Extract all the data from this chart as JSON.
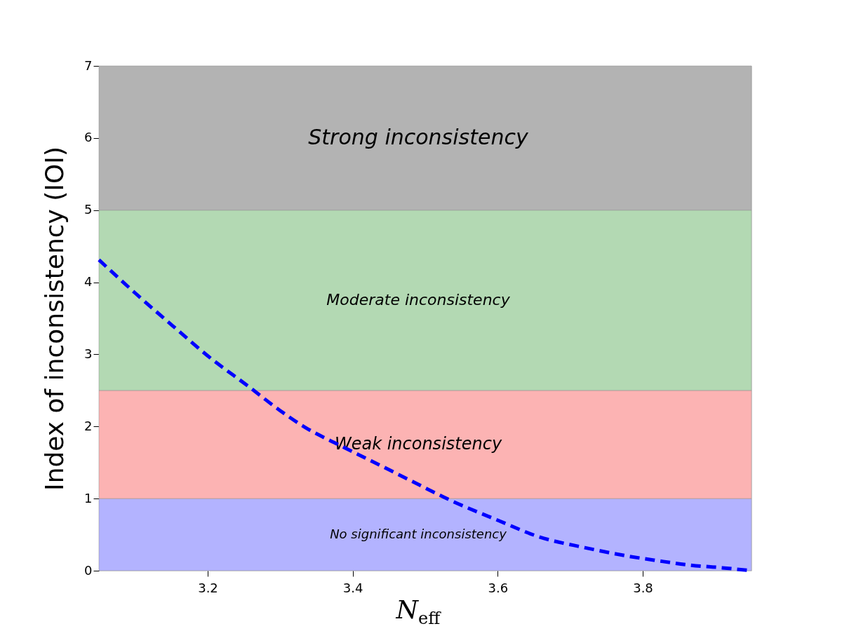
{
  "chart_data": {
    "type": "line",
    "xlabel": "N$_{eff}$",
    "ylabel": "Index of inconsistency (IOI)",
    "xlim": [
      3.05,
      3.95
    ],
    "ylim": [
      0,
      7
    ],
    "xticks": [
      3.2,
      3.4,
      3.6,
      3.8
    ],
    "yticks": [
      0,
      1,
      2,
      3,
      4,
      5,
      6,
      7
    ],
    "series": [
      {
        "color": "#0000ff",
        "line_style": "dashed",
        "marker": "none",
        "x": [
          3.05,
          3.1,
          3.157,
          3.2,
          3.257,
          3.3,
          3.334,
          3.38,
          3.422,
          3.48,
          3.534,
          3.6,
          3.657,
          3.72,
          3.775,
          3.82,
          3.863,
          3.91,
          3.95
        ],
        "values": [
          4.31,
          3.85,
          3.35,
          2.98,
          2.55,
          2.22,
          1.99,
          1.75,
          1.54,
          1.25,
          0.98,
          0.7,
          0.47,
          0.32,
          0.21,
          0.14,
          0.08,
          0.04,
          0.0
        ]
      }
    ],
    "bands": [
      {
        "axis": "y",
        "from": 0,
        "to": 1,
        "label": "No significant inconsistency",
        "color": "#b3b3ff"
      },
      {
        "axis": "y",
        "from": 1,
        "to": 2.5,
        "label": "Weak inconsistency",
        "color": "#fcb3b3"
      },
      {
        "axis": "y",
        "from": 2.5,
        "to": 5,
        "label": "Moderate inconsistency",
        "color": "#b3d9b3"
      },
      {
        "axis": "y",
        "from": 5,
        "to": 7,
        "label": "Strong inconsistency",
        "color": "#b3b3b3"
      }
    ]
  }
}
